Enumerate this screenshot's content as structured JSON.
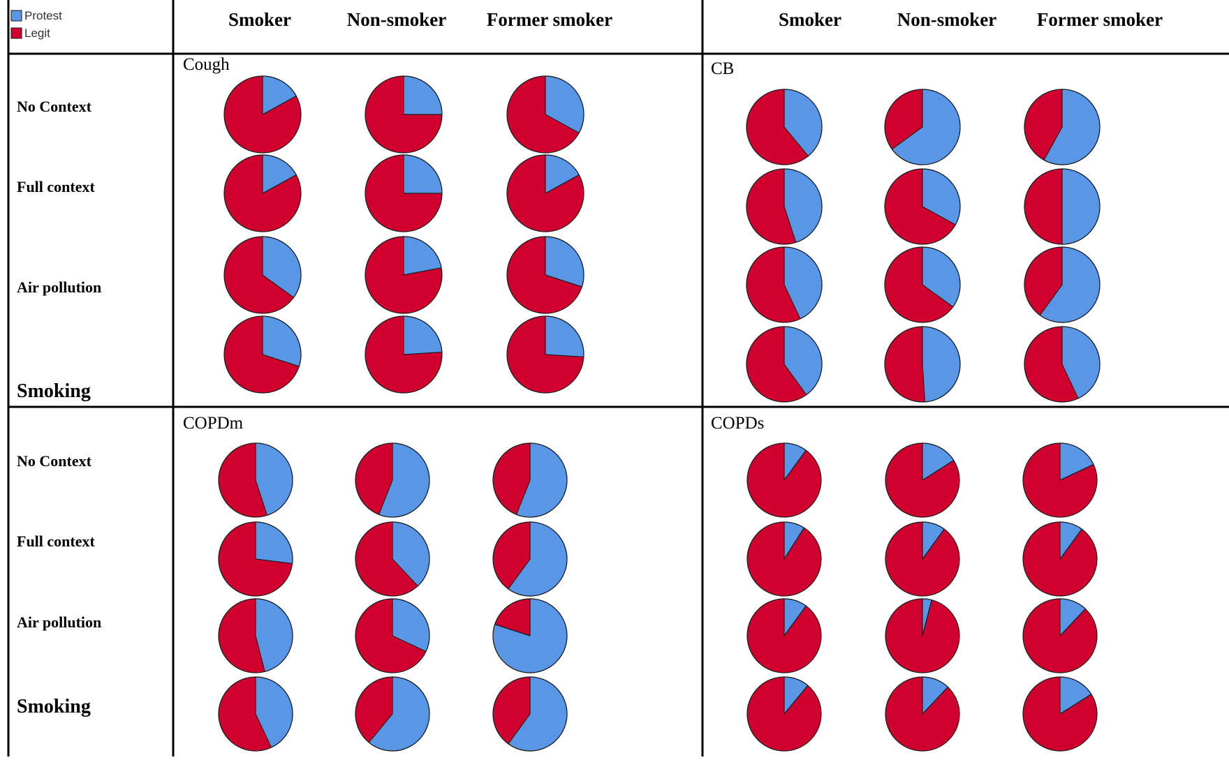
{
  "legend": {
    "items": [
      {
        "label": "Protest",
        "color": "#5a96e6"
      },
      {
        "label": "Legit",
        "color": "#d0002f"
      }
    ]
  },
  "column_headers": [
    "Smoker",
    "Non-smoker",
    "Former smoker"
  ],
  "row_labels": [
    "No Context",
    "Full context",
    "Air pollution",
    "Smoking"
  ],
  "colors": {
    "protest": "#5a96e6",
    "legit": "#d0002f",
    "outline": "#1a1a1a",
    "border": "#000000"
  },
  "chart_data": [
    {
      "type": "pie",
      "title": "Cough",
      "columns": [
        "Smoker",
        "Non-smoker",
        "Former smoker"
      ],
      "rows": [
        "No Context",
        "Full context",
        "Air pollution",
        "Smoking"
      ],
      "series": [
        "Protest",
        "Legit"
      ],
      "protest_share": [
        [
          0.17,
          0.25,
          0.33
        ],
        [
          0.17,
          0.25,
          0.17
        ],
        [
          0.35,
          0.22,
          0.3
        ],
        [
          0.3,
          0.24,
          0.26
        ]
      ]
    },
    {
      "type": "pie",
      "title": "CB",
      "columns": [
        "Smoker",
        "Non-smoker",
        "Former smoker"
      ],
      "rows": [
        "No Context",
        "Full context",
        "Air pollution",
        "Smoking"
      ],
      "series": [
        "Protest",
        "Legit"
      ],
      "protest_share": [
        [
          0.39,
          0.65,
          0.58
        ],
        [
          0.45,
          0.33,
          0.5
        ],
        [
          0.43,
          0.35,
          0.6
        ],
        [
          0.4,
          0.49,
          0.43
        ]
      ]
    },
    {
      "type": "pie",
      "title": "COPDm",
      "columns": [
        "Smoker",
        "Non-smoker",
        "Former smoker"
      ],
      "rows": [
        "No Context",
        "Full context",
        "Air pollution",
        "Smoking"
      ],
      "series": [
        "Protest",
        "Legit"
      ],
      "protest_share": [
        [
          0.45,
          0.56,
          0.56
        ],
        [
          0.27,
          0.38,
          0.6
        ],
        [
          0.46,
          0.32,
          0.8
        ],
        [
          0.43,
          0.61,
          0.6
        ]
      ]
    },
    {
      "type": "pie",
      "title": "COPDs",
      "columns": [
        "Smoker",
        "Non-smoker",
        "Former smoker"
      ],
      "rows": [
        "No Context",
        "Full context",
        "Air pollution",
        "Smoking"
      ],
      "series": [
        "Protest",
        "Legit"
      ],
      "protest_share": [
        [
          0.1,
          0.16,
          0.18
        ],
        [
          0.09,
          0.1,
          0.1
        ],
        [
          0.1,
          0.04,
          0.12
        ],
        [
          0.11,
          0.12,
          0.16
        ]
      ]
    }
  ]
}
